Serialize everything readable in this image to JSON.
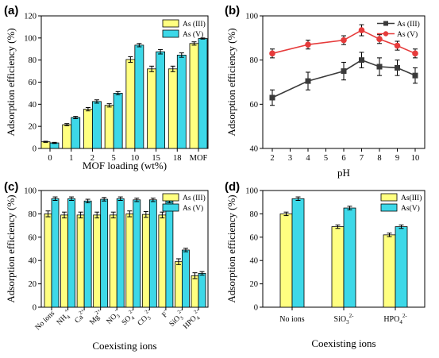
{
  "colors": {
    "as3": "#ffff80",
    "as5": "#3dd8e8",
    "line3": "#3a3a3a",
    "line5": "#e63b3b"
  },
  "chart_data": [
    {
      "panel": "(a)",
      "type": "bar",
      "xlabel": "MOF loading (wt%)",
      "ylabel": "Adsorption efficiency (%)",
      "ylim": [
        0,
        120
      ],
      "yticks": [
        "0",
        "20",
        "40",
        "60",
        "80",
        "100",
        "120"
      ],
      "categories": [
        "0",
        "1",
        "2",
        "5",
        "10",
        "15",
        "18",
        "MOF"
      ],
      "legend": "top-left",
      "series": [
        {
          "name": "As (III)",
          "values": [
            6,
            21.5,
            35.5,
            39,
            80.5,
            72,
            72,
            95
          ],
          "errors": [
            0.5,
            1,
            1.5,
            1.5,
            2.5,
            2.5,
            2.5,
            1.5
          ]
        },
        {
          "name": "As (V)",
          "values": [
            5,
            28,
            42.5,
            50,
            93.5,
            87.5,
            84.5,
            99.5
          ],
          "errors": [
            0.5,
            1,
            1.5,
            1.5,
            1.5,
            2,
            2,
            0.5
          ]
        }
      ]
    },
    {
      "panel": "(b)",
      "type": "line",
      "xlabel": "pH",
      "ylabel": "Adsorption efficiency (%)",
      "ylim": [
        40,
        100
      ],
      "yticks": [
        "40",
        "60",
        "80",
        "100"
      ],
      "x": [
        2,
        4,
        6,
        7,
        8,
        9,
        10
      ],
      "xticks": [
        "2",
        "3",
        "4",
        "5",
        "6",
        "7",
        "8",
        "9",
        "10"
      ],
      "xlim": [
        2,
        10
      ],
      "legend": "top-right",
      "series": [
        {
          "name": "As (III)",
          "marker": "square",
          "values": [
            63,
            70.5,
            75,
            80,
            77,
            76.5,
            73
          ],
          "errors": [
            3.5,
            4,
            4,
            3.5,
            4,
            3.5,
            3.5
          ]
        },
        {
          "name": "As (V)",
          "marker": "circle",
          "values": [
            83,
            87,
            89,
            93.5,
            89.5,
            86.5,
            83
          ],
          "errors": [
            2,
            2,
            2,
            2.5,
            2,
            2,
            2
          ]
        }
      ]
    },
    {
      "panel": "(c)",
      "type": "bar",
      "xlabel": "Coexisting ions",
      "ylabel": "Adsorption efficiency (%)",
      "ylim": [
        0,
        100
      ],
      "yticks": [
        "0",
        "20",
        "40",
        "60",
        "80",
        "100"
      ],
      "categories": [
        {
          "base": "No ions",
          "sup": "",
          "sub": ""
        },
        {
          "base": "NH",
          "sup": "+",
          "sub": "4"
        },
        {
          "base": "Ca",
          "sup": "2+",
          "sub": ""
        },
        {
          "base": "Mg",
          "sup": "2+",
          "sub": ""
        },
        {
          "base": "NO",
          "sup": "-",
          "sub": "3"
        },
        {
          "base": "SO",
          "sup": "2-",
          "sub": "4"
        },
        {
          "base": "CO",
          "sup": "2-",
          "sub": "3"
        },
        {
          "base": "F",
          "sup": "-",
          "sub": ""
        },
        {
          "base": "SiO",
          "sup": "2-",
          "sub": "3"
        },
        {
          "base": "HPO",
          "sup": "2-",
          "sub": "4"
        }
      ],
      "legend": "top-right",
      "series": [
        {
          "name": "As (III)",
          "values": [
            80,
            79,
            79,
            79,
            79,
            80,
            79.5,
            79,
            39,
            27
          ],
          "errors": [
            2.5,
            2.5,
            2.5,
            2.5,
            2.5,
            2.5,
            2.5,
            2.5,
            2.5,
            2.5
          ]
        },
        {
          "name": "As (V)",
          "values": [
            93,
            93,
            91,
            92.5,
            93,
            92,
            92,
            91,
            49,
            29
          ],
          "errors": [
            1.5,
            1.5,
            1.5,
            1.5,
            1.5,
            1.5,
            1.5,
            1.5,
            1.5,
            1.5
          ]
        }
      ]
    },
    {
      "panel": "(d)",
      "type": "bar",
      "xlabel": "Coexisting ions",
      "ylabel": "Adsorption efficiency (%)",
      "ylim": [
        0,
        100
      ],
      "yticks": [
        "0",
        "20",
        "40",
        "60",
        "80",
        "100"
      ],
      "categories": [
        {
          "base": "No ions",
          "sup": "",
          "sub": ""
        },
        {
          "base": "SiO",
          "sup": "2-",
          "sub": "3"
        },
        {
          "base": "HPO",
          "sup": "2-",
          "sub": "4"
        }
      ],
      "legend": "top-right",
      "series": [
        {
          "name": "As(III)",
          "values": [
            80,
            69,
            62
          ],
          "errors": [
            1.5,
            1.5,
            1.5
          ]
        },
        {
          "name": "As(V)",
          "values": [
            93,
            85,
            69
          ],
          "errors": [
            1.5,
            1.5,
            1.5
          ]
        }
      ]
    }
  ]
}
